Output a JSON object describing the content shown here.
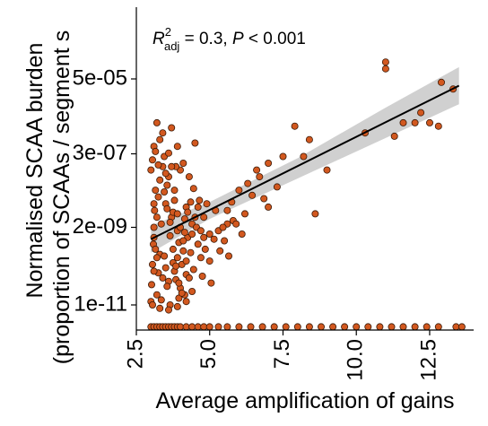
{
  "chart_data": {
    "type": "scatter",
    "annotation": {
      "prefix": "R",
      "superscript": "2",
      "subscript": "adj",
      "text": " = 0.3, ",
      "p_symbol": "P",
      "p_text": " < 0.001"
    },
    "xlabel": "Average amplification of gains",
    "ylabel": "Normalised SCAA burden",
    "ylabel2": "(proportion of SCAAs / segment s",
    "x_scale": "linear",
    "y_scale": "log",
    "xlim": [
      2.5,
      14.0
    ],
    "ylim_log10": [
      -12.0,
      -3.7
    ],
    "x_ticks": [
      2.5,
      5.0,
      7.5,
      10.0,
      12.5
    ],
    "x_tick_labels": [
      "2.5",
      "5.0",
      "7.5",
      "10.0",
      "12.5"
    ],
    "y_ticks_log10": [
      -11,
      -8.7,
      -6.52,
      -4.3
    ],
    "y_tick_labels": [
      "1e-11",
      "2e-09",
      "3e-07",
      "5e-05"
    ],
    "regression": {
      "x": [
        3.0,
        13.5
      ],
      "log10_y": [
        -9.05,
        -4.5
      ]
    },
    "confidence_band": {
      "x": [
        3.0,
        5.0,
        8.0,
        11.0,
        13.5
      ],
      "lower": [
        -9.45,
        -8.45,
        -7.25,
        -6.05,
        -5.05
      ],
      "upper": [
        -8.65,
        -7.95,
        -6.65,
        -5.15,
        -3.95
      ]
    },
    "zero_row_label_log10": -11.65,
    "marker_fill": "#D2581F",
    "marker_edge": "#3a1a08",
    "line_color": "#000000",
    "band_color": "#c8c8c8",
    "points": [
      [
        3.0,
        -10.9
      ],
      [
        3.02,
        -10.4
      ],
      [
        3.05,
        -9.8
      ],
      [
        3.08,
        -9.2
      ],
      [
        3.1,
        -8.7
      ],
      [
        3.12,
        -8.2
      ],
      [
        3.15,
        -7.6
      ],
      [
        3.0,
        -7.0
      ],
      [
        3.05,
        -6.7
      ],
      [
        3.1,
        -6.3
      ],
      [
        3.2,
        -5.6
      ],
      [
        3.4,
        -5.9
      ],
      [
        3.7,
        -5.75
      ],
      [
        3.3,
        -6.1
      ],
      [
        3.9,
        -6.3
      ],
      [
        4.1,
        -6.8
      ],
      [
        4.5,
        -6.2
      ],
      [
        3.6,
        -7.2
      ],
      [
        3.8,
        -7.6
      ],
      [
        4.3,
        -7.2
      ],
      [
        3.5,
        -8.0
      ],
      [
        3.7,
        -8.4
      ],
      [
        3.9,
        -8.8
      ],
      [
        4.2,
        -8.1
      ],
      [
        4.4,
        -8.6
      ],
      [
        4.6,
        -9.2
      ],
      [
        4.8,
        -8.4
      ],
      [
        5.0,
        -8.9
      ],
      [
        3.3,
        -9.5
      ],
      [
        3.5,
        -9.9
      ],
      [
        3.6,
        -10.3
      ],
      [
        3.8,
        -10.0
      ],
      [
        4.0,
        -10.5
      ],
      [
        4.2,
        -10.1
      ],
      [
        4.4,
        -10.6
      ],
      [
        3.2,
        -10.7
      ],
      [
        3.4,
        -10.2
      ],
      [
        3.9,
        -9.6
      ],
      [
        4.1,
        -9.4
      ],
      [
        4.7,
        -9.6
      ],
      [
        5.0,
        -9.7
      ],
      [
        5.3,
        -8.8
      ],
      [
        5.6,
        -8.2
      ],
      [
        5.8,
        -8.5
      ],
      [
        6.0,
        -7.6
      ],
      [
        6.3,
        -7.4
      ],
      [
        6.6,
        -7.0
      ],
      [
        7.0,
        -6.8
      ],
      [
        7.3,
        -7.5
      ],
      [
        7.5,
        -6.6
      ],
      [
        7.9,
        -5.7
      ],
      [
        8.2,
        -6.6
      ],
      [
        8.4,
        -6.1
      ],
      [
        8.6,
        -8.3
      ],
      [
        9.0,
        -7.0
      ],
      [
        10.3,
        -5.9
      ],
      [
        11.0,
        -4.0
      ],
      [
        11.3,
        -6.0
      ],
      [
        11.6,
        -5.6
      ],
      [
        12.0,
        -5.6
      ],
      [
        12.5,
        -5.6
      ],
      [
        12.9,
        -4.4
      ],
      [
        13.3,
        -4.6
      ],
      [
        12.2,
        -5.3
      ],
      [
        11.0,
        -3.8
      ],
      [
        12.8,
        -5.7
      ],
      [
        6.7,
        -7.2
      ],
      [
        5.5,
        -9.1
      ],
      [
        6.1,
        -8.9
      ],
      [
        5.9,
        -8.6
      ],
      [
        4.9,
        -8.0
      ],
      [
        5.2,
        -8.2
      ],
      [
        6.2,
        -8.3
      ],
      [
        7.0,
        -8.1
      ],
      [
        5.6,
        -8.6
      ],
      [
        4.0,
        -7.0
      ],
      [
        3.45,
        -6.6
      ],
      [
        3.85,
        -6.9
      ],
      [
        4.45,
        -7.55
      ],
      [
        4.65,
        -7.9
      ],
      [
        3.25,
        -7.8
      ],
      [
        3.55,
        -7.45
      ],
      [
        3.75,
        -8.25
      ],
      [
        4.15,
        -8.45
      ],
      [
        4.35,
        -7.95
      ],
      [
        3.35,
        -8.6
      ],
      [
        3.65,
        -8.95
      ],
      [
        3.95,
        -9.15
      ],
      [
        4.25,
        -9.0
      ],
      [
        4.55,
        -8.7
      ],
      [
        3.15,
        -9.35
      ],
      [
        3.45,
        -9.55
      ],
      [
        3.75,
        -9.75
      ],
      [
        4.05,
        -9.8
      ],
      [
        4.35,
        -9.45
      ],
      [
        3.25,
        -10.05
      ],
      [
        3.55,
        -10.45
      ],
      [
        3.85,
        -10.25
      ],
      [
        4.15,
        -10.7
      ],
      [
        3.05,
        -11.0
      ],
      [
        3.35,
        -10.85
      ],
      [
        3.65,
        -11.0
      ],
      [
        3.95,
        -10.8
      ],
      [
        4.45,
        -9.95
      ],
      [
        4.85,
        -9.35
      ],
      [
        5.15,
        -9.05
      ],
      [
        5.45,
        -8.7
      ],
      [
        5.75,
        -7.95
      ],
      [
        6.45,
        -7.75
      ],
      [
        6.85,
        -7.85
      ],
      [
        5.35,
        -9.4
      ],
      [
        5.65,
        -9.55
      ],
      [
        4.75,
        -10.15
      ],
      [
        5.05,
        -10.35
      ],
      [
        3.1,
        -8.0
      ],
      [
        3.1,
        -9.0
      ],
      [
        3.1,
        -10.0
      ],
      [
        3.2,
        -9.6
      ],
      [
        3.2,
        -8.4
      ],
      [
        3.3,
        -7.3
      ],
      [
        3.4,
        -6.9
      ],
      [
        3.5,
        -7.1
      ],
      [
        3.6,
        -6.5
      ],
      [
        3.7,
        -6.9
      ],
      [
        3.8,
        -7.9
      ],
      [
        3.9,
        -8.3
      ],
      [
        4.0,
        -8.7
      ],
      [
        4.1,
        -9.1
      ],
      [
        4.2,
        -9.7
      ],
      [
        4.3,
        -10.2
      ],
      [
        4.4,
        -8.9
      ],
      [
        4.5,
        -8.4
      ],
      [
        4.6,
        -8.1
      ],
      [
        4.7,
        -8.8
      ],
      [
        4.8,
        -9.0
      ],
      [
        3.3,
        -11.1
      ],
      [
        3.6,
        -11.15
      ],
      [
        3.9,
        -11.05
      ],
      [
        4.2,
        -10.9
      ],
      [
        3.15,
        -6.45
      ],
      [
        3.25,
        -6.85
      ],
      [
        3.45,
        -7.65
      ],
      [
        3.55,
        -8.15
      ],
      [
        3.65,
        -8.55
      ],
      [
        3.75,
        -9.35
      ],
      [
        3.85,
        -9.85
      ],
      [
        3.95,
        -10.35
      ],
      [
        4.05,
        -10.65
      ],
      [
        4.15,
        -8.85
      ],
      [
        4.25,
        -8.25
      ],
      [
        3.0,
        -11.65
      ],
      [
        3.1,
        -11.65
      ],
      [
        3.2,
        -11.65
      ],
      [
        3.3,
        -11.65
      ],
      [
        3.4,
        -11.65
      ],
      [
        3.5,
        -11.65
      ],
      [
        3.6,
        -11.65
      ],
      [
        3.7,
        -11.65
      ],
      [
        3.8,
        -11.65
      ],
      [
        3.9,
        -11.65
      ],
      [
        4.0,
        -11.65
      ],
      [
        4.2,
        -11.65
      ],
      [
        4.4,
        -11.65
      ],
      [
        4.6,
        -11.65
      ],
      [
        4.8,
        -11.65
      ],
      [
        5.0,
        -11.65
      ],
      [
        5.3,
        -11.65
      ],
      [
        5.6,
        -11.65
      ],
      [
        6.0,
        -11.65
      ],
      [
        6.4,
        -11.65
      ],
      [
        6.8,
        -11.65
      ],
      [
        7.2,
        -11.65
      ],
      [
        7.6,
        -11.65
      ],
      [
        8.0,
        -11.65
      ],
      [
        8.4,
        -11.65
      ],
      [
        8.8,
        -11.65
      ],
      [
        9.2,
        -11.65
      ],
      [
        9.6,
        -11.65
      ],
      [
        10.0,
        -11.65
      ],
      [
        10.4,
        -11.65
      ],
      [
        10.8,
        -11.65
      ],
      [
        11.2,
        -11.65
      ],
      [
        11.6,
        -11.65
      ],
      [
        12.0,
        -11.65
      ],
      [
        12.4,
        -11.65
      ],
      [
        12.8,
        -11.65
      ],
      [
        13.4,
        -11.65
      ],
      [
        13.6,
        -11.65
      ]
    ]
  }
}
